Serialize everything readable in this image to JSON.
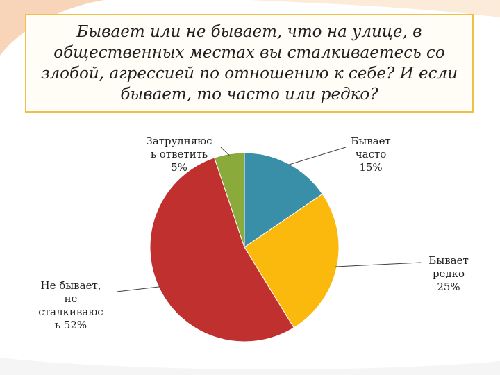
{
  "title": "Бывает или не бывает, что на улице, в общественных местах вы сталкиваетесь со злобой, агрессией по отношению к себе? И если бывает, то часто или редко?",
  "chart_data": {
    "type": "pie",
    "title": "Бывает или не бывает, что на улице, в общественных местах вы сталкиваетесь со злобой, агрессией по отношению к себе? И если бывает, то часто или редко?",
    "slices": [
      {
        "label_lines": [
          "Бывает",
          "часто",
          "15%"
        ],
        "value": 15,
        "color": "#3a8fa8"
      },
      {
        "label_lines": [
          "Бывает",
          "редко",
          "25%"
        ],
        "value": 25,
        "color": "#fbb90e"
      },
      {
        "label_lines": [
          "Не бывает,",
          "не",
          "сталкиваюс",
          "ь 52%"
        ],
        "value": 52,
        "color": "#c0302f"
      },
      {
        "label_lines": [
          "Затрудняюс",
          "ь ответить",
          "5%"
        ],
        "value": 5,
        "color": "#8aab3c"
      }
    ]
  }
}
